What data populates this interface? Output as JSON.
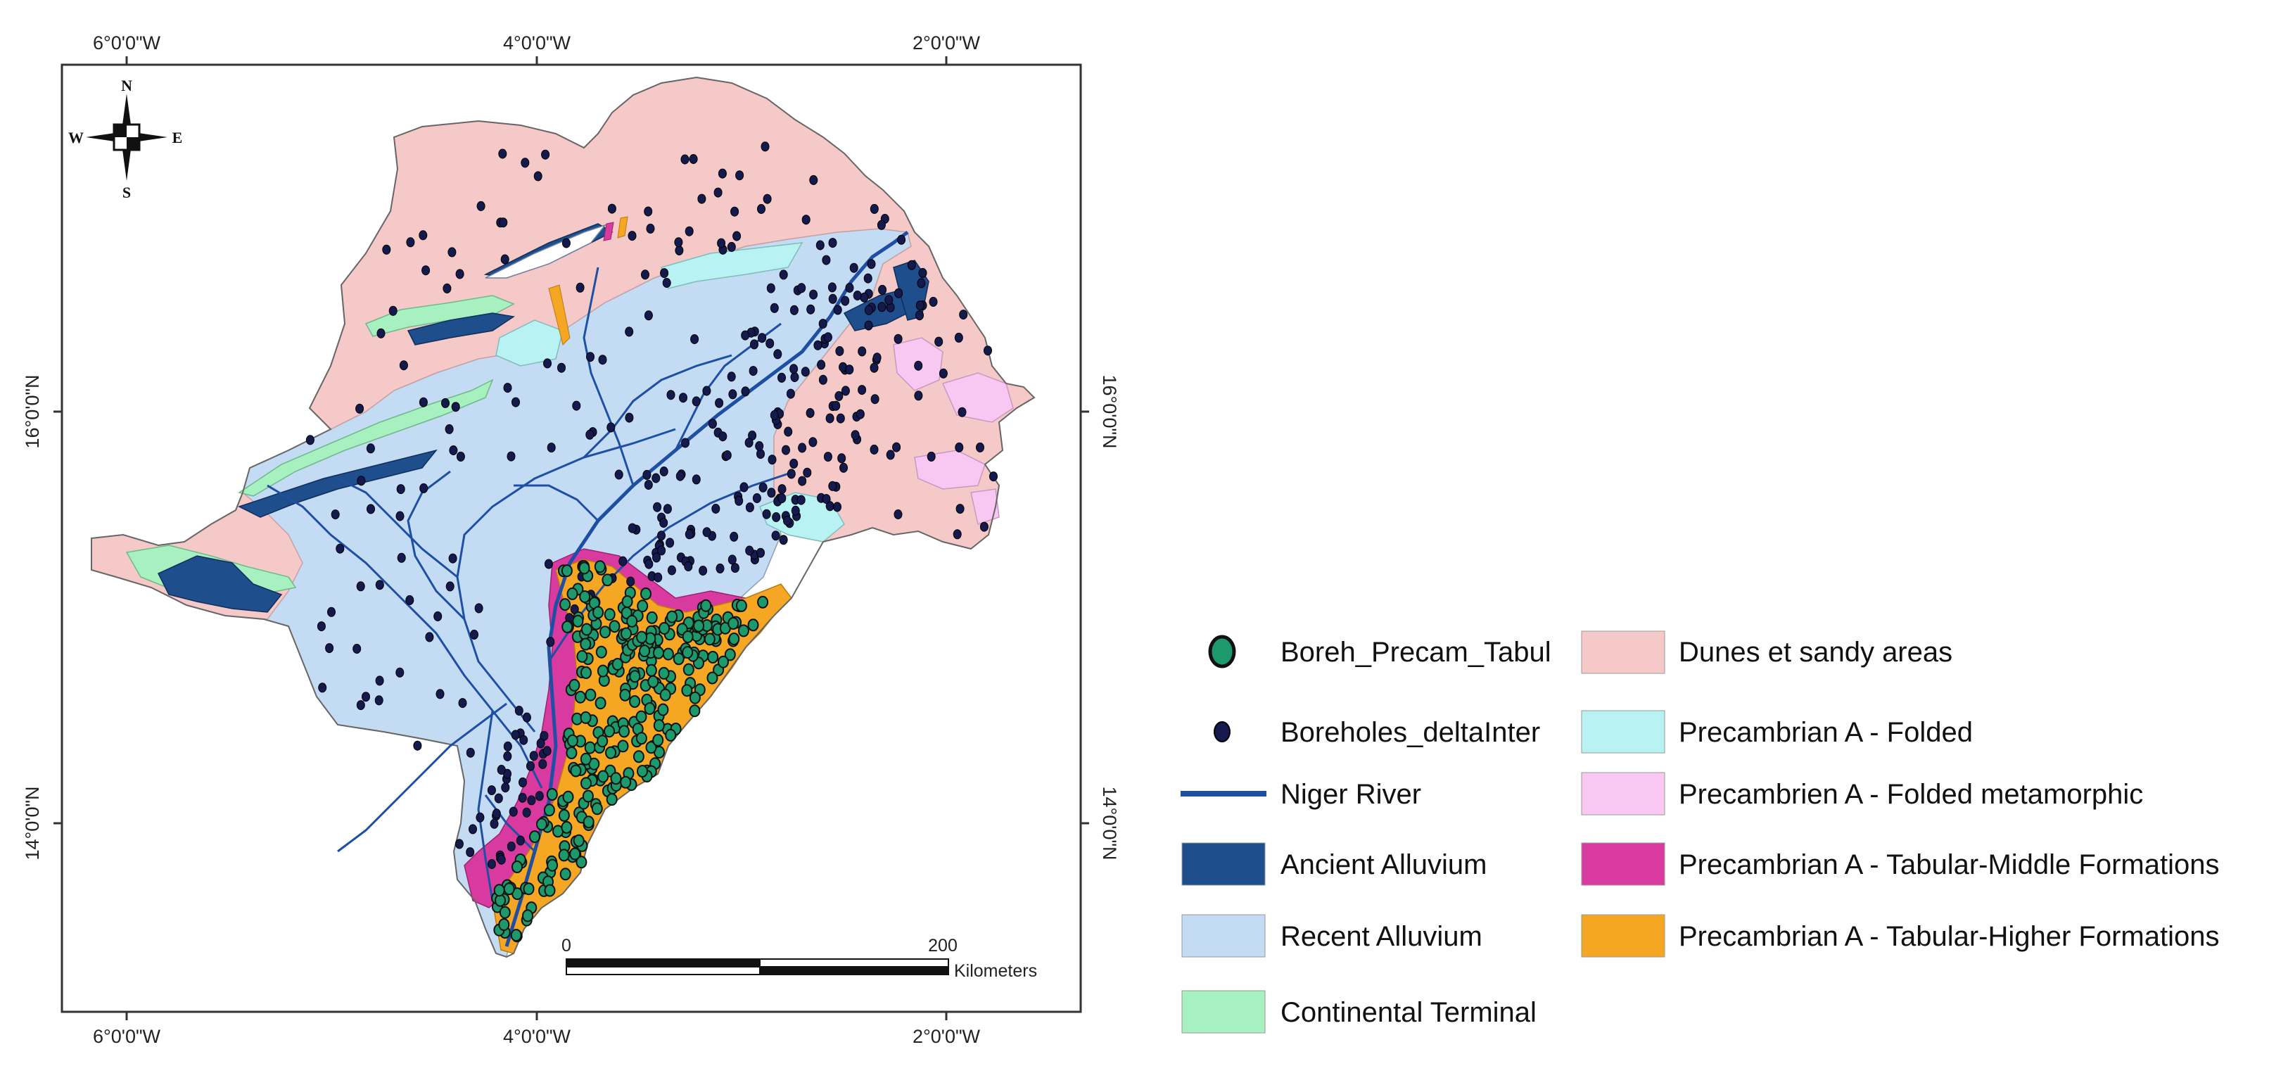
{
  "map": {
    "title": "",
    "graticule": {
      "top_labels": [
        "6°0'0\"W",
        "4°0'0\"W",
        "2°0'0\"W"
      ],
      "bottom_labels": [
        "6°0'0\"W",
        "4°0'0\"W",
        "2°0'0\"W"
      ],
      "left_labels": [
        "16°0'0\"N",
        "14°0'0\"N"
      ],
      "right_labels": [
        "16°0'0\"N",
        "14°0'0\"N"
      ]
    },
    "compass": {
      "n": "N",
      "s": "S",
      "e": "E",
      "w": "W"
    },
    "scale_bar": {
      "start": "0",
      "end": "200",
      "unit": "Kilometers"
    }
  },
  "legend": {
    "items": [
      {
        "label": "Boreh_Precam_Tabul",
        "color": "#1d9a6c",
        "kind": "green-point"
      },
      {
        "label": "Boreholes_deltaInter",
        "color": "#141a4d",
        "kind": "navy-point"
      },
      {
        "label": "Niger River",
        "color": "#1e4fa3",
        "kind": "line"
      },
      {
        "label": "Ancient Alluvium",
        "color": "#1f4e8c",
        "kind": "area"
      },
      {
        "label": "Recent Alluvium",
        "color": "#c3dcf3",
        "kind": "area"
      },
      {
        "label": "Continental Terminal",
        "color": "#a7f0c0",
        "kind": "area"
      },
      {
        "label": "Dunes et sandy areas",
        "color": "#f6c9c9",
        "kind": "area"
      },
      {
        "label": "Precambrian A - Folded",
        "color": "#b8f2f2",
        "kind": "area"
      },
      {
        "label": "Precambrien A - Folded metamorphic",
        "color": "#f8c8f2",
        "kind": "area"
      },
      {
        "label": "Precambrian A - Tabular-Middle Formations",
        "color": "#d93aa0",
        "kind": "area"
      },
      {
        "label": "Precambrian A - Tabular-Higher Formations",
        "color": "#f5a623",
        "kind": "area"
      }
    ]
  }
}
